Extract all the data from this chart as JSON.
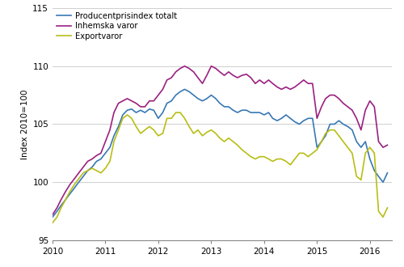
{
  "ylabel": "Index 2010=100",
  "ylim": [
    95,
    115
  ],
  "yticks": [
    95,
    100,
    105,
    110,
    115
  ],
  "line_colors": {
    "totalt": "#3878b4",
    "inhemska": "#9b2080",
    "export": "#b8be14"
  },
  "legend_labels": [
    "Producentprisindex totalt",
    "Inhemska varor",
    "Exportvaror"
  ],
  "totalt": [
    97.0,
    97.5,
    98.0,
    98.5,
    99.0,
    99.5,
    100.0,
    100.5,
    101.0,
    101.3,
    101.8,
    102.0,
    102.5,
    103.0,
    104.0,
    104.8,
    105.8,
    106.2,
    106.3,
    106.0,
    106.2,
    106.0,
    106.3,
    106.2,
    105.5,
    106.0,
    106.8,
    107.0,
    107.5,
    107.8,
    108.0,
    107.8,
    107.5,
    107.2,
    107.0,
    107.2,
    107.5,
    107.2,
    106.8,
    106.5,
    106.5,
    106.2,
    106.0,
    106.2,
    106.2,
    106.0,
    106.0,
    106.0,
    105.8,
    106.0,
    105.5,
    105.3,
    105.5,
    105.8,
    105.5,
    105.2,
    105.0,
    105.3,
    105.5,
    105.5,
    103.0,
    103.5,
    104.0,
    105.0,
    105.0,
    105.3,
    105.0,
    104.8,
    104.5,
    103.5,
    103.0,
    103.5,
    102.0,
    101.0,
    100.5,
    100.0,
    100.8
  ],
  "inhemska": [
    97.2,
    97.8,
    98.5,
    99.2,
    99.8,
    100.3,
    100.8,
    101.3,
    101.8,
    102.0,
    102.3,
    102.5,
    103.5,
    104.5,
    106.0,
    106.8,
    107.0,
    107.2,
    107.0,
    106.8,
    106.5,
    106.5,
    107.0,
    107.0,
    107.5,
    108.0,
    108.8,
    109.0,
    109.5,
    109.8,
    110.0,
    109.8,
    109.5,
    109.0,
    108.5,
    109.2,
    110.0,
    109.8,
    109.5,
    109.2,
    109.5,
    109.2,
    109.0,
    109.2,
    109.3,
    109.0,
    108.5,
    108.8,
    108.5,
    108.8,
    108.5,
    108.2,
    108.0,
    108.2,
    108.0,
    108.2,
    108.5,
    108.8,
    108.5,
    108.5,
    105.5,
    106.5,
    107.2,
    107.5,
    107.5,
    107.2,
    106.8,
    106.5,
    106.2,
    105.5,
    104.5,
    106.2,
    107.0,
    106.5,
    103.5,
    103.0,
    103.2
  ],
  "export": [
    96.5,
    97.0,
    97.8,
    98.5,
    99.2,
    99.8,
    100.3,
    100.8,
    101.0,
    101.2,
    101.0,
    100.8,
    101.2,
    101.8,
    103.5,
    104.5,
    105.5,
    105.8,
    105.5,
    104.8,
    104.2,
    104.5,
    104.8,
    104.5,
    104.0,
    104.2,
    105.5,
    105.5,
    106.0,
    106.0,
    105.5,
    104.8,
    104.2,
    104.5,
    104.0,
    104.3,
    104.5,
    104.2,
    103.8,
    103.5,
    103.8,
    103.5,
    103.2,
    102.8,
    102.5,
    102.2,
    102.0,
    102.2,
    102.2,
    102.0,
    101.8,
    102.0,
    102.0,
    101.8,
    101.5,
    102.0,
    102.5,
    102.5,
    102.2,
    102.5,
    102.8,
    103.5,
    104.2,
    104.5,
    104.5,
    104.0,
    103.5,
    103.0,
    102.5,
    100.5,
    100.2,
    102.5,
    103.0,
    102.5,
    97.5,
    97.0,
    97.8
  ],
  "background_color": "#ffffff",
  "grid_color": "#c8c8c8"
}
